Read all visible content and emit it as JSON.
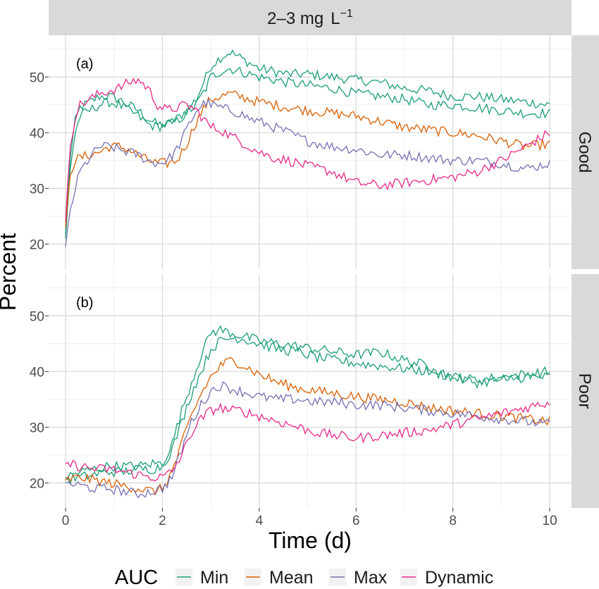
{
  "chart_data": {
    "type": "line",
    "column_strip": {
      "label": "2–3 mg",
      "unit": "L",
      "unit_exp": "−1"
    },
    "xlabel": "Time (d)",
    "ylabel": "Percent",
    "xlim": [
      -0.35,
      10.45
    ],
    "x_ticks": [
      0,
      2,
      4,
      6,
      8,
      10
    ],
    "ylim": [
      15.5,
      57.5
    ],
    "y_ticks": [
      20,
      30,
      40,
      50
    ],
    "grid": true,
    "legend": {
      "title": "AUC",
      "position": "bottom"
    },
    "series_styles": [
      {
        "name": "Min",
        "color": "#1b9e77"
      },
      {
        "name": "Mean",
        "color": "#d95f02"
      },
      {
        "name": "Max",
        "color": "#7570b3"
      },
      {
        "name": "Dynamic",
        "color": "#e7298a"
      }
    ],
    "panels": [
      {
        "tag": "(a)",
        "row_strip": "Good",
        "series": [
          {
            "name": "Min",
            "color": "#1b9e77",
            "x": [
              0,
              0.1,
              0.2,
              0.3,
              0.5,
              0.7,
              0.9,
              1.1,
              1.3,
              1.5,
              1.7,
              1.9,
              2.1,
              2.3,
              2.5,
              2.7,
              2.9,
              3.0,
              3.2,
              3.4,
              3.6,
              3.8,
              4.0,
              4.3,
              4.6,
              5.0,
              5.5,
              6.0,
              6.5,
              7.0,
              7.5,
              8.0,
              8.5,
              9.0,
              9.5,
              10.0
            ],
            "y": [
              22,
              36,
              42,
              44.5,
              45.5,
              46.5,
              46.5,
              46,
              45,
              44,
              42.5,
              41.5,
              41.5,
              42.5,
              44,
              46,
              50,
              52,
              53.5,
              54.5,
              53.5,
              52.5,
              51.5,
              51,
              50.5,
              50.5,
              50,
              49.5,
              49,
              48,
              47.5,
              46.5,
              46.5,
              46,
              45.5,
              45
            ]
          },
          {
            "name": "Min",
            "color": "#1b9e77",
            "x": [
              0,
              0.1,
              0.2,
              0.3,
              0.5,
              0.7,
              0.9,
              1.1,
              1.3,
              1.5,
              1.7,
              1.9,
              2.1,
              2.3,
              2.5,
              2.7,
              2.9,
              3.0,
              3.2,
              3.4,
              3.6,
              3.8,
              4.0,
              4.3,
              4.6,
              5.0,
              5.5,
              6.0,
              6.5,
              7.0,
              7.5,
              8.0,
              8.5,
              9.0,
              9.5,
              10.0
            ],
            "y": [
              21,
              34,
              40,
              43,
              44,
              45,
              45.5,
              45,
              44,
              43,
              41.5,
              41,
              41.5,
              42,
              43.5,
              45,
              48,
              50,
              51,
              51.5,
              51,
              50.5,
              50,
              49.5,
              49,
              48.5,
              48,
              47,
              46.5,
              46,
              45,
              45,
              44.5,
              44,
              43.5,
              43.5
            ]
          },
          {
            "name": "Mean",
            "color": "#d95f02",
            "x": [
              0,
              0.1,
              0.2,
              0.3,
              0.5,
              0.7,
              0.9,
              1.1,
              1.3,
              1.5,
              1.7,
              1.9,
              2.1,
              2.3,
              2.5,
              2.7,
              2.9,
              3.0,
              3.2,
              3.4,
              3.6,
              3.8,
              4.0,
              4.3,
              4.6,
              5.0,
              5.5,
              6.0,
              6.5,
              7.0,
              7.5,
              8.0,
              8.5,
              9.0,
              9.5,
              10.0
            ],
            "y": [
              23,
              33,
              35,
              35.5,
              36,
              36.5,
              37.5,
              37.5,
              37,
              36,
              35,
              34.5,
              34.5,
              35,
              38,
              42,
              45,
              46,
              46.5,
              47,
              46.5,
              46,
              45.5,
              45,
              44.5,
              44,
              43.5,
              43,
              42,
              41,
              40.5,
              40,
              39.5,
              38.5,
              37.5,
              38
            ]
          },
          {
            "name": "Max",
            "color": "#7570b3",
            "x": [
              0,
              0.1,
              0.2,
              0.3,
              0.5,
              0.7,
              0.9,
              1.1,
              1.3,
              1.5,
              1.7,
              1.9,
              2.1,
              2.3,
              2.5,
              2.7,
              2.9,
              3.0,
              3.2,
              3.4,
              3.6,
              3.8,
              4.0,
              4.3,
              4.6,
              5.0,
              5.5,
              6.0,
              6.5,
              7.0,
              7.5,
              8.0,
              8.5,
              9.0,
              9.5,
              10.0
            ],
            "y": [
              19.5,
              26,
              30,
              33,
              35.5,
              37.5,
              37.5,
              37,
              36.5,
              36,
              35,
              34.5,
              35,
              37,
              40.5,
              44,
              45.5,
              45,
              44.5,
              44,
              43.5,
              42.5,
              42,
              41,
              40,
              38.5,
              37.5,
              37,
              36,
              36,
              35.5,
              35,
              35,
              34.5,
              33.5,
              34.5
            ]
          },
          {
            "name": "Dynamic",
            "color": "#e7298a",
            "x": [
              0,
              0.1,
              0.2,
              0.3,
              0.5,
              0.7,
              0.9,
              1.1,
              1.3,
              1.5,
              1.7,
              1.9,
              2.1,
              2.3,
              2.5,
              2.7,
              2.9,
              3.0,
              3.2,
              3.4,
              3.6,
              3.8,
              4.0,
              4.3,
              4.6,
              5.0,
              5.5,
              6.0,
              6.5,
              7.0,
              7.5,
              8.0,
              8.5,
              9.0,
              9.5,
              10.0
            ],
            "y": [
              24,
              38,
              43,
              45,
              46,
              47,
              47.5,
              48,
              49,
              49.5,
              48,
              45,
              44,
              44.5,
              45,
              44,
              42,
              41,
              40.5,
              39.5,
              38.5,
              37.5,
              36.5,
              35.5,
              35,
              34,
              33,
              31,
              30.5,
              31,
              31.5,
              32,
              33,
              35,
              37.5,
              40
            ]
          }
        ]
      },
      {
        "tag": "(b)",
        "row_strip": "Poor",
        "series": [
          {
            "name": "Min",
            "color": "#1b9e77",
            "x": [
              0,
              0.3,
              0.6,
              0.9,
              1.2,
              1.5,
              1.8,
              2.0,
              2.2,
              2.4,
              2.6,
              2.8,
              3.0,
              3.2,
              3.4,
              3.6,
              3.8,
              4.0,
              4.4,
              4.8,
              5.2,
              5.6,
              6.0,
              6.5,
              7.0,
              7.5,
              8.0,
              8.5,
              9.0,
              9.5,
              10.0
            ],
            "y": [
              21,
              22,
              22.5,
              23,
              23,
              23,
              23.5,
              23.5,
              27,
              33,
              38,
              43,
              47,
              47.5,
              47,
              46.5,
              46,
              45.5,
              45,
              44.5,
              44,
              43.5,
              43,
              43.5,
              42,
              41,
              39,
              38.5,
              39,
              39.5,
              40
            ]
          },
          {
            "name": "Min",
            "color": "#1b9e77",
            "x": [
              0,
              0.3,
              0.6,
              0.9,
              1.2,
              1.5,
              1.8,
              2.0,
              2.2,
              2.4,
              2.6,
              2.8,
              3.0,
              3.2,
              3.4,
              3.6,
              3.8,
              4.0,
              4.4,
              4.8,
              5.2,
              5.6,
              6.0,
              6.5,
              7.0,
              7.5,
              8.0,
              8.5,
              9.0,
              9.5,
              10.0
            ],
            "y": [
              20.5,
              21,
              21.5,
              22,
              22,
              22.5,
              22.5,
              23,
              26,
              31,
              36,
              40,
              44,
              45.5,
              46,
              46,
              45.5,
              45,
              44,
              43.5,
              42.5,
              42,
              41.5,
              41,
              40.5,
              40,
              39,
              38,
              38.5,
              39,
              39
            ]
          },
          {
            "name": "Mean",
            "color": "#d95f02",
            "x": [
              0,
              0.3,
              0.6,
              0.9,
              1.2,
              1.5,
              1.8,
              2.0,
              2.2,
              2.4,
              2.6,
              2.8,
              3.0,
              3.2,
              3.4,
              3.6,
              3.8,
              4.0,
              4.4,
              4.8,
              5.2,
              5.6,
              6.0,
              6.5,
              7.0,
              7.5,
              8.0,
              8.5,
              9.0,
              9.5,
              10.0
            ],
            "y": [
              20.5,
              21,
              20.5,
              20,
              19.5,
              19,
              18.5,
              19,
              22,
              27,
              32,
              36,
              39,
              41,
              42,
              41.5,
              40.5,
              39.5,
              38,
              37,
              36.5,
              36,
              35.5,
              35,
              34.5,
              33.5,
              33,
              32.5,
              32,
              31.5,
              31
            ]
          },
          {
            "name": "Max",
            "color": "#7570b3",
            "x": [
              0,
              0.3,
              0.6,
              0.9,
              1.2,
              1.5,
              1.8,
              2.0,
              2.2,
              2.4,
              2.6,
              2.8,
              3.0,
              3.2,
              3.4,
              3.6,
              3.8,
              4.0,
              4.4,
              4.8,
              5.2,
              5.6,
              6.0,
              6.5,
              7.0,
              7.5,
              8.0,
              8.5,
              9.0,
              9.5,
              10.0
            ],
            "y": [
              20,
              19.5,
              19,
              19,
              18.5,
              18,
              18.5,
              19,
              21,
              26,
              31,
              34,
              36.5,
              37.5,
              37,
              36.5,
              36,
              35.5,
              35,
              35,
              34.5,
              34.5,
              34,
              34,
              33.5,
              33,
              32.5,
              32,
              31.5,
              31,
              30.5
            ]
          },
          {
            "name": "Dynamic",
            "color": "#e7298a",
            "x": [
              0,
              0.3,
              0.6,
              0.9,
              1.2,
              1.5,
              1.8,
              2.0,
              2.2,
              2.4,
              2.6,
              2.8,
              3.0,
              3.2,
              3.4,
              3.6,
              3.8,
              4.0,
              4.4,
              4.8,
              5.2,
              5.6,
              6.0,
              6.5,
              7.0,
              7.5,
              8.0,
              8.5,
              9.0,
              9.5,
              10.0
            ],
            "y": [
              23.5,
              23,
              22.5,
              22.5,
              22,
              21.5,
              21,
              21,
              22,
              25,
              29,
              31.5,
              33,
              33.5,
              33,
              33,
              32.5,
              32,
              31,
              30,
              29,
              28.5,
              28,
              28.5,
              29,
              29.5,
              30.5,
              31.5,
              32.5,
              33.5,
              34.5
            ]
          }
        ]
      }
    ]
  }
}
